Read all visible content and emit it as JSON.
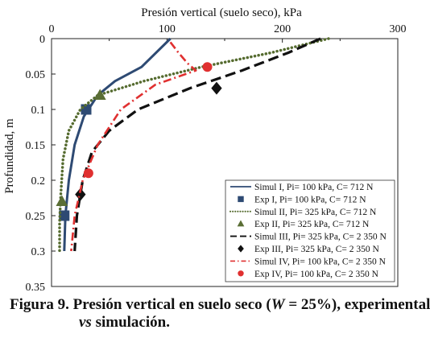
{
  "chart_data": {
    "type": "line",
    "xlabel": "Presión vertical (suelo seco), kPa",
    "ylabel": "Profundidad, m",
    "xlim": [
      0,
      300
    ],
    "ylim": [
      0,
      0.35
    ],
    "x_axis_position": "top",
    "y_axis_inverted": true,
    "x_ticks": [
      "0",
      "100",
      "200",
      "300"
    ],
    "y_ticks": [
      "0",
      "0.05",
      "0.1",
      "0.15",
      "0.2",
      "0.25",
      "0.3",
      "0.35"
    ],
    "grid": false,
    "legend_position": "bottom-right",
    "series": [
      {
        "name": "Simul I, Pi= 100 kPa, C= 712 N",
        "kind": "line",
        "style": "solid",
        "color": "#2e4a73",
        "points": [
          [
            103,
            0
          ],
          [
            78,
            0.04
          ],
          [
            55,
            0.06
          ],
          [
            40,
            0.08
          ],
          [
            28,
            0.11
          ],
          [
            20,
            0.15
          ],
          [
            15,
            0.2
          ],
          [
            12,
            0.25
          ],
          [
            11,
            0.3
          ]
        ]
      },
      {
        "name": "Exp I, Pi= 100 kPa, C= 712 N",
        "kind": "marker",
        "marker": "square",
        "color": "#2e4a73",
        "points": [
          [
            30,
            0.1
          ],
          [
            11,
            0.25
          ]
        ]
      },
      {
        "name": "Simul II, Pi= 325 kPa, C= 712 N",
        "kind": "line",
        "style": "dotted",
        "color": "#556b2f",
        "points": [
          [
            240,
            0
          ],
          [
            190,
            0.02
          ],
          [
            130,
            0.04
          ],
          [
            80,
            0.06
          ],
          [
            40,
            0.08
          ],
          [
            25,
            0.1
          ],
          [
            15,
            0.13
          ],
          [
            10,
            0.17
          ],
          [
            8,
            0.22
          ],
          [
            7,
            0.26
          ],
          [
            7,
            0.3
          ]
        ]
      },
      {
        "name": "Exp II, Pi= 325 kPa, C= 712 N",
        "kind": "marker",
        "marker": "triangle",
        "color": "#5a6e35",
        "points": [
          [
            42,
            0.08
          ],
          [
            9,
            0.23
          ]
        ]
      },
      {
        "name": "Simul III, Pi= 325 kPa, C= 2 350 N",
        "kind": "line",
        "style": "dashed",
        "color": "#111111",
        "points": [
          [
            233,
            0
          ],
          [
            205,
            0.02
          ],
          [
            165,
            0.045
          ],
          [
            120,
            0.07
          ],
          [
            75,
            0.1
          ],
          [
            50,
            0.13
          ],
          [
            35,
            0.16
          ],
          [
            27,
            0.2
          ],
          [
            22,
            0.25
          ],
          [
            20,
            0.3
          ]
        ]
      },
      {
        "name": "Exp III, Pi= 325 kPa, C= 2 350 N",
        "kind": "marker",
        "marker": "diamond",
        "color": "#111111",
        "points": [
          [
            143,
            0.07
          ],
          [
            25,
            0.22
          ]
        ]
      },
      {
        "name": "Simul IV, Pi= 100 kPa, C= 2 350 N",
        "kind": "line",
        "style": "dash-dot",
        "color": "#e03030",
        "points": [
          [
            103,
            0.005
          ],
          [
            110,
            0.02
          ],
          [
            118,
            0.035
          ],
          [
            125,
            0.045
          ],
          [
            90,
            0.065
          ],
          [
            60,
            0.1
          ],
          [
            40,
            0.15
          ],
          [
            27,
            0.2
          ],
          [
            20,
            0.25
          ],
          [
            17,
            0.3
          ]
        ]
      },
      {
        "name": "Exp IV, Pi= 100 kPa, C= 2 350 N",
        "kind": "marker",
        "marker": "circle",
        "color": "#e03030",
        "points": [
          [
            135,
            0.04
          ],
          [
            32,
            0.19
          ]
        ]
      }
    ]
  },
  "caption": {
    "line1_before": "Figura 9. Presión vertical en suelo seco (",
    "line1_var": "W",
    "line1_after": " = 25%), experimental",
    "line2_italic": "vs",
    "line2_after": " simulación."
  }
}
